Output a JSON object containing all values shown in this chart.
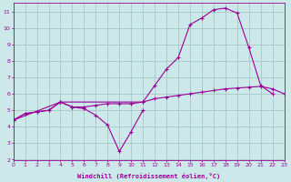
{
  "background_color": "#cce8e8",
  "grid_color": "#aacccc",
  "line_color": "#990099",
  "xlim": [
    0,
    23
  ],
  "ylim": [
    2,
    11.5
  ],
  "xticks": [
    0,
    1,
    2,
    3,
    4,
    5,
    6,
    7,
    8,
    9,
    10,
    11,
    12,
    13,
    14,
    15,
    16,
    17,
    18,
    19,
    20,
    21,
    22,
    23
  ],
  "yticks": [
    2,
    3,
    4,
    5,
    6,
    7,
    8,
    9,
    10,
    11
  ],
  "xlabel": "Windchill (Refroidissement éolien,°C)",
  "series": [
    {
      "x": [
        0,
        1,
        2,
        3,
        4,
        5,
        6,
        7,
        8,
        9,
        10,
        11
      ],
      "y": [
        4.4,
        4.8,
        4.9,
        5.0,
        5.5,
        5.2,
        5.1,
        4.7,
        4.1,
        2.5,
        3.7,
        5.0
      ]
    },
    {
      "x": [
        0,
        1,
        2,
        3,
        4,
        5,
        6,
        7,
        8,
        9,
        10,
        11,
        12,
        13,
        14,
        15,
        16,
        17,
        18,
        19,
        20,
        21,
        22
      ],
      "y": [
        4.4,
        4.8,
        4.9,
        5.0,
        5.5,
        5.2,
        5.2,
        5.3,
        5.4,
        5.4,
        5.4,
        5.5,
        6.5,
        7.5,
        8.2,
        10.2,
        10.6,
        11.1,
        11.2,
        10.9,
        8.8,
        6.5,
        6.0
      ]
    },
    {
      "x": [
        0,
        4,
        11,
        12,
        13,
        14,
        15,
        16,
        17,
        18,
        19,
        20,
        21,
        22,
        23
      ],
      "y": [
        4.4,
        5.5,
        5.5,
        5.7,
        5.8,
        5.9,
        6.0,
        6.1,
        6.2,
        6.3,
        6.35,
        6.4,
        6.45,
        6.3,
        6.0
      ]
    }
  ]
}
